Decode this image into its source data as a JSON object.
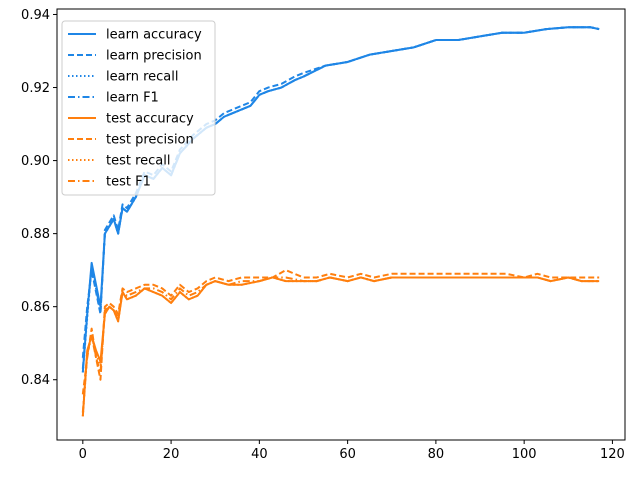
{
  "chart_data": {
    "type": "line",
    "title": "",
    "xlabel": "",
    "ylabel": "",
    "xlim": [
      -5.85,
      122.85
    ],
    "ylim": [
      0.8235,
      0.9415
    ],
    "xticks": [
      0,
      20,
      40,
      60,
      80,
      100,
      120
    ],
    "yticks": [
      0.84,
      0.86,
      0.88,
      0.9,
      0.92,
      0.94
    ],
    "xtick_labels": [
      "0",
      "20",
      "40",
      "60",
      "80",
      "100",
      "120"
    ],
    "ytick_labels": [
      "0.84",
      "0.86",
      "0.88",
      "0.90",
      "0.92",
      "0.94"
    ],
    "grid": false,
    "legend_position": "upper-left",
    "colors": {
      "learn": "#1f86e6",
      "test": "#ff7f0e"
    },
    "series": [
      {
        "name": "learn accuracy",
        "group": "learn",
        "style": "solid",
        "x": [
          0,
          1,
          2,
          3,
          4,
          5,
          6,
          7,
          8,
          9,
          10,
          12,
          14,
          16,
          18,
          20,
          22,
          25,
          28,
          30,
          32,
          34,
          36,
          38,
          40,
          42,
          45,
          48,
          50,
          55,
          60,
          65,
          70,
          75,
          80,
          85,
          90,
          95,
          100,
          105,
          110,
          115,
          117
        ],
        "y": [
          0.842,
          0.858,
          0.872,
          0.866,
          0.86,
          0.88,
          0.882,
          0.884,
          0.88,
          0.887,
          0.886,
          0.89,
          0.896,
          0.895,
          0.898,
          0.896,
          0.902,
          0.906,
          0.909,
          0.91,
          0.912,
          0.913,
          0.914,
          0.915,
          0.918,
          0.919,
          0.92,
          0.922,
          0.923,
          0.926,
          0.927,
          0.929,
          0.93,
          0.931,
          0.933,
          0.933,
          0.934,
          0.935,
          0.935,
          0.936,
          0.9365,
          0.9365,
          0.936
        ]
      },
      {
        "name": "learn precision",
        "group": "learn",
        "style": "dashed",
        "x": [
          0,
          1,
          2,
          3,
          4,
          5,
          6,
          7,
          8,
          9,
          10,
          12,
          14,
          16,
          18,
          20,
          22,
          25,
          28,
          30,
          32,
          34,
          36,
          38,
          40,
          42,
          45,
          48,
          50,
          55,
          60,
          65,
          70,
          75,
          80,
          85,
          90,
          95,
          100,
          105,
          110,
          115,
          117
        ],
        "y": [
          0.846,
          0.86,
          0.87,
          0.864,
          0.858,
          0.881,
          0.883,
          0.885,
          0.881,
          0.888,
          0.887,
          0.891,
          0.897,
          0.896,
          0.899,
          0.897,
          0.903,
          0.907,
          0.91,
          0.911,
          0.913,
          0.914,
          0.915,
          0.916,
          0.919,
          0.92,
          0.921,
          0.923,
          0.924,
          0.926,
          0.927,
          0.929,
          0.93,
          0.931,
          0.933,
          0.933,
          0.934,
          0.935,
          0.935,
          0.936,
          0.9365,
          0.9365,
          0.936
        ]
      },
      {
        "name": "learn recall",
        "group": "learn",
        "style": "dotted",
        "x": [
          0,
          1,
          2,
          3,
          4,
          5,
          6,
          7,
          8,
          9,
          10,
          12,
          14,
          16,
          18,
          20,
          22,
          25,
          28,
          30,
          32,
          34,
          36,
          38,
          40,
          42,
          45,
          48,
          50,
          55,
          60,
          65,
          70,
          75,
          80,
          85,
          90,
          95,
          100,
          105,
          110,
          115,
          117
        ],
        "y": [
          0.842,
          0.857,
          0.871,
          0.865,
          0.859,
          0.88,
          0.882,
          0.884,
          0.88,
          0.887,
          0.886,
          0.89,
          0.896,
          0.895,
          0.898,
          0.896,
          0.902,
          0.906,
          0.909,
          0.91,
          0.912,
          0.913,
          0.914,
          0.915,
          0.918,
          0.919,
          0.92,
          0.922,
          0.923,
          0.926,
          0.927,
          0.929,
          0.93,
          0.931,
          0.933,
          0.933,
          0.934,
          0.935,
          0.935,
          0.936,
          0.9365,
          0.9365,
          0.936
        ]
      },
      {
        "name": "learn F1",
        "group": "learn",
        "style": "dashdot",
        "x": [
          0,
          1,
          2,
          3,
          4,
          5,
          6,
          7,
          8,
          9,
          10,
          12,
          14,
          16,
          18,
          20,
          22,
          25,
          28,
          30,
          32,
          34,
          36,
          38,
          40,
          42,
          45,
          48,
          50,
          55,
          60,
          65,
          70,
          75,
          80,
          85,
          90,
          95,
          100,
          105,
          110,
          115,
          117
        ],
        "y": [
          0.843,
          0.858,
          0.871,
          0.865,
          0.859,
          0.88,
          0.882,
          0.884,
          0.88,
          0.887,
          0.886,
          0.89,
          0.896,
          0.895,
          0.898,
          0.896,
          0.902,
          0.906,
          0.909,
          0.91,
          0.912,
          0.913,
          0.914,
          0.915,
          0.918,
          0.919,
          0.92,
          0.922,
          0.923,
          0.926,
          0.927,
          0.929,
          0.93,
          0.931,
          0.933,
          0.933,
          0.934,
          0.935,
          0.935,
          0.936,
          0.9365,
          0.9365,
          0.936
        ]
      },
      {
        "name": "test accuracy",
        "group": "test",
        "style": "solid",
        "x": [
          0,
          1,
          2,
          3,
          4,
          5,
          6,
          7,
          8,
          9,
          10,
          12,
          14,
          16,
          18,
          20,
          22,
          24,
          26,
          28,
          30,
          33,
          36,
          40,
          43,
          46,
          50,
          53,
          56,
          60,
          63,
          66,
          70,
          73,
          76,
          80,
          83,
          86,
          90,
          93,
          96,
          100,
          103,
          106,
          110,
          113,
          117
        ],
        "y": [
          0.83,
          0.848,
          0.852,
          0.848,
          0.845,
          0.858,
          0.86,
          0.859,
          0.856,
          0.864,
          0.862,
          0.863,
          0.865,
          0.864,
          0.863,
          0.861,
          0.864,
          0.862,
          0.863,
          0.866,
          0.867,
          0.866,
          0.866,
          0.867,
          0.868,
          0.867,
          0.867,
          0.867,
          0.868,
          0.867,
          0.868,
          0.867,
          0.868,
          0.868,
          0.868,
          0.868,
          0.868,
          0.868,
          0.868,
          0.868,
          0.868,
          0.868,
          0.868,
          0.867,
          0.868,
          0.867,
          0.867
        ]
      },
      {
        "name": "test precision",
        "group": "test",
        "style": "dashed",
        "x": [
          0,
          1,
          2,
          3,
          4,
          5,
          6,
          7,
          8,
          9,
          10,
          12,
          14,
          16,
          18,
          20,
          22,
          24,
          26,
          28,
          30,
          33,
          36,
          40,
          43,
          46,
          50,
          53,
          56,
          60,
          63,
          66,
          70,
          73,
          76,
          80,
          83,
          86,
          90,
          93,
          96,
          100,
          103,
          106,
          110,
          113,
          117
        ],
        "y": [
          0.836,
          0.846,
          0.854,
          0.846,
          0.84,
          0.86,
          0.861,
          0.86,
          0.858,
          0.865,
          0.864,
          0.865,
          0.866,
          0.866,
          0.865,
          0.863,
          0.866,
          0.864,
          0.865,
          0.867,
          0.868,
          0.867,
          0.868,
          0.868,
          0.868,
          0.87,
          0.868,
          0.868,
          0.869,
          0.868,
          0.869,
          0.868,
          0.869,
          0.869,
          0.869,
          0.869,
          0.869,
          0.869,
          0.869,
          0.869,
          0.869,
          0.868,
          0.869,
          0.868,
          0.868,
          0.868,
          0.868
        ]
      },
      {
        "name": "test recall",
        "group": "test",
        "style": "dotted",
        "x": [
          0,
          1,
          2,
          3,
          4,
          5,
          6,
          7,
          8,
          9,
          10,
          12,
          14,
          16,
          18,
          20,
          22,
          24,
          26,
          28,
          30,
          33,
          36,
          40,
          43,
          46,
          50,
          53,
          56,
          60,
          63,
          66,
          70,
          73,
          76,
          80,
          83,
          86,
          90,
          93,
          96,
          100,
          103,
          106,
          110,
          113,
          117
        ],
        "y": [
          0.83,
          0.847,
          0.852,
          0.847,
          0.844,
          0.858,
          0.86,
          0.859,
          0.856,
          0.864,
          0.862,
          0.863,
          0.865,
          0.864,
          0.863,
          0.861,
          0.864,
          0.862,
          0.863,
          0.866,
          0.867,
          0.866,
          0.866,
          0.867,
          0.868,
          0.867,
          0.867,
          0.867,
          0.868,
          0.867,
          0.868,
          0.867,
          0.868,
          0.868,
          0.868,
          0.868,
          0.868,
          0.868,
          0.868,
          0.868,
          0.868,
          0.868,
          0.868,
          0.867,
          0.868,
          0.867,
          0.867
        ]
      },
      {
        "name": "test F1",
        "group": "test",
        "style": "dashdot",
        "x": [
          0,
          1,
          2,
          3,
          4,
          5,
          6,
          7,
          8,
          9,
          10,
          12,
          14,
          16,
          18,
          20,
          22,
          24,
          26,
          28,
          30,
          33,
          36,
          40,
          43,
          46,
          50,
          53,
          56,
          60,
          63,
          66,
          70,
          73,
          76,
          80,
          83,
          86,
          90,
          93,
          96,
          100,
          103,
          106,
          110,
          113,
          117
        ],
        "y": [
          0.831,
          0.847,
          0.852,
          0.846,
          0.842,
          0.859,
          0.86,
          0.859,
          0.857,
          0.864,
          0.863,
          0.864,
          0.865,
          0.865,
          0.864,
          0.862,
          0.865,
          0.863,
          0.864,
          0.866,
          0.867,
          0.866,
          0.867,
          0.867,
          0.868,
          0.868,
          0.867,
          0.867,
          0.868,
          0.867,
          0.868,
          0.867,
          0.868,
          0.868,
          0.868,
          0.868,
          0.868,
          0.868,
          0.868,
          0.868,
          0.868,
          0.868,
          0.868,
          0.867,
          0.868,
          0.867,
          0.867
        ]
      }
    ]
  }
}
